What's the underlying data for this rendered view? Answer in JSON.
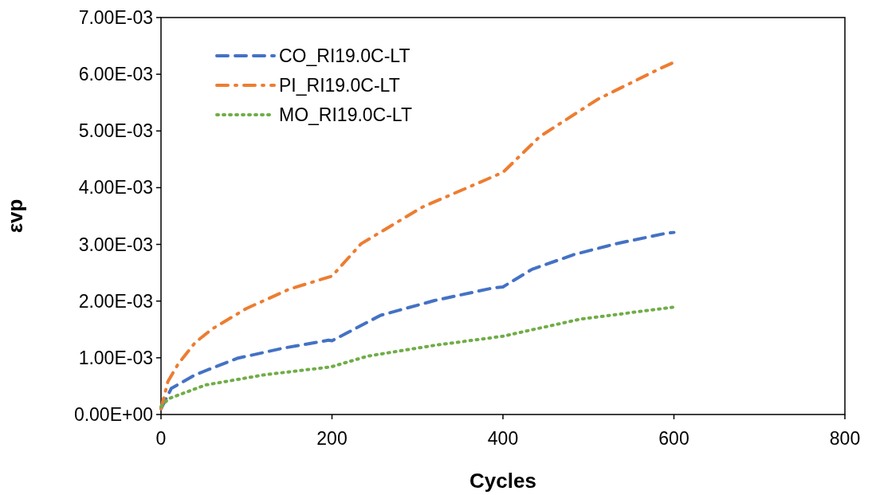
{
  "chart_data": {
    "type": "line",
    "xlabel": "Cycles",
    "ylabel": "εvp",
    "xlim": [
      0,
      800
    ],
    "xticks": [
      0,
      200,
      400,
      600,
      800
    ],
    "ylim": [
      0,
      0.007
    ],
    "yticks": [
      {
        "value": 0,
        "label": "0.00E+00"
      },
      {
        "value": 0.001,
        "label": "1.00E-03"
      },
      {
        "value": 0.002,
        "label": "2.00E-03"
      },
      {
        "value": 0.003,
        "label": "3.00E-03"
      },
      {
        "value": 0.004,
        "label": "4.00E-03"
      },
      {
        "value": 0.005,
        "label": "5.00E-03"
      },
      {
        "value": 0.006,
        "label": "6.00E-03"
      },
      {
        "value": 0.007,
        "label": "7.00E-03"
      }
    ],
    "grid": false,
    "legend": "top left",
    "series": [
      {
        "name": "CO_RI19.0C-LT",
        "color": "#4472c4",
        "line_style": "dashed",
        "x": [
          0,
          12,
          40,
          89,
          143,
          196,
          200,
          257,
          320,
          388,
          400,
          434,
          483,
          532,
          592,
          600
        ],
        "values": [
          0.0001,
          0.00046,
          0.0007,
          0.00099,
          0.00117,
          0.00131,
          0.0013,
          0.00175,
          0.00201,
          0.00223,
          0.00225,
          0.00256,
          0.00282,
          0.00301,
          0.0032,
          0.00321
        ]
      },
      {
        "name": "PI_RI19.0C-LT",
        "color": "#ed7d31",
        "line_style": "dashdot",
        "x": [
          0,
          8,
          20,
          40,
          60,
          100,
          150,
          200,
          234,
          306,
          380,
          400,
          443,
          511,
          585,
          600
        ],
        "values": [
          0.0001,
          0.00058,
          0.00089,
          0.00127,
          0.00151,
          0.00187,
          0.00221,
          0.00244,
          0.00301,
          0.00366,
          0.00414,
          0.00427,
          0.0049,
          0.00556,
          0.00611,
          0.00621
        ]
      },
      {
        "name": "MO_RI19.0C-LT",
        "color": "#70ad47",
        "line_style": "dotted",
        "x": [
          0,
          9,
          52,
          121,
          199,
          242,
          320,
          400,
          490,
          598,
          600
        ],
        "values": [
          0.00014,
          0.00028,
          0.00052,
          0.0007,
          0.00084,
          0.00103,
          0.00122,
          0.00138,
          0.00168,
          0.00189,
          0.00189
        ]
      }
    ]
  }
}
